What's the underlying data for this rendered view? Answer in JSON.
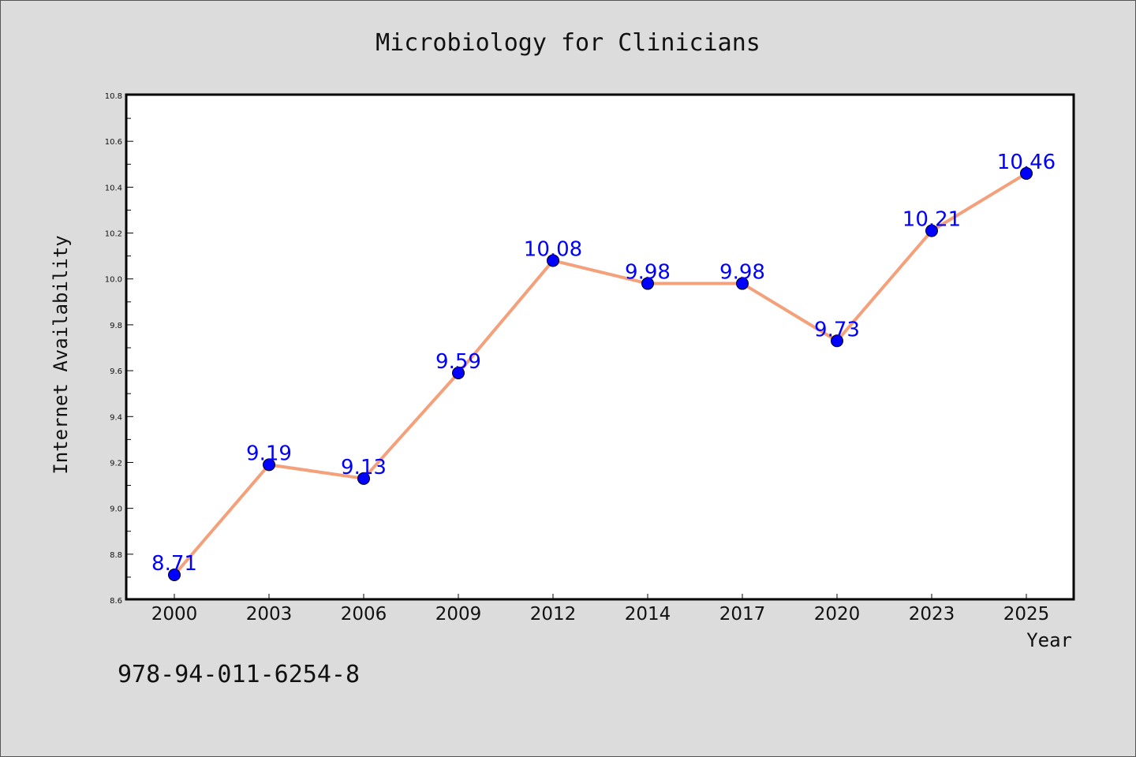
{
  "chart_data": {
    "type": "line",
    "title": "Microbiology for Clinicians",
    "xlabel": "Year",
    "ylabel": "Internet Availability",
    "categories": [
      "2000",
      "2003",
      "2006",
      "2009",
      "2012",
      "2014",
      "2017",
      "2020",
      "2023",
      "2025"
    ],
    "series": [
      {
        "values": [
          8.71,
          9.19,
          9.13,
          9.59,
          10.08,
          9.98,
          9.98,
          9.73,
          10.21,
          10.46
        ],
        "data_labels": [
          "8.71",
          "9.19",
          "9.13",
          "9.59",
          "10.08",
          "9.98",
          "9.98",
          "9.73",
          "10.21",
          "10.46"
        ],
        "line_color": "#f4a07a",
        "marker_color": "#0000ff"
      }
    ],
    "ylim": [
      8.6,
      10.8
    ],
    "yticks": [
      "8.6",
      "8.8",
      "9.0",
      "9.2",
      "9.4",
      "9.6",
      "9.8",
      "10.0",
      "10.2",
      "10.4",
      "10.6",
      "10.8"
    ],
    "grid": false,
    "legend": "none"
  },
  "footer": {
    "isbn": "978-94-011-6254-8"
  },
  "colors": {
    "background": "#dcdcdc",
    "plot_background": "#ffffff",
    "line": "#f4a07a",
    "marker": "#0000ff",
    "data_label": "#0000ff"
  }
}
